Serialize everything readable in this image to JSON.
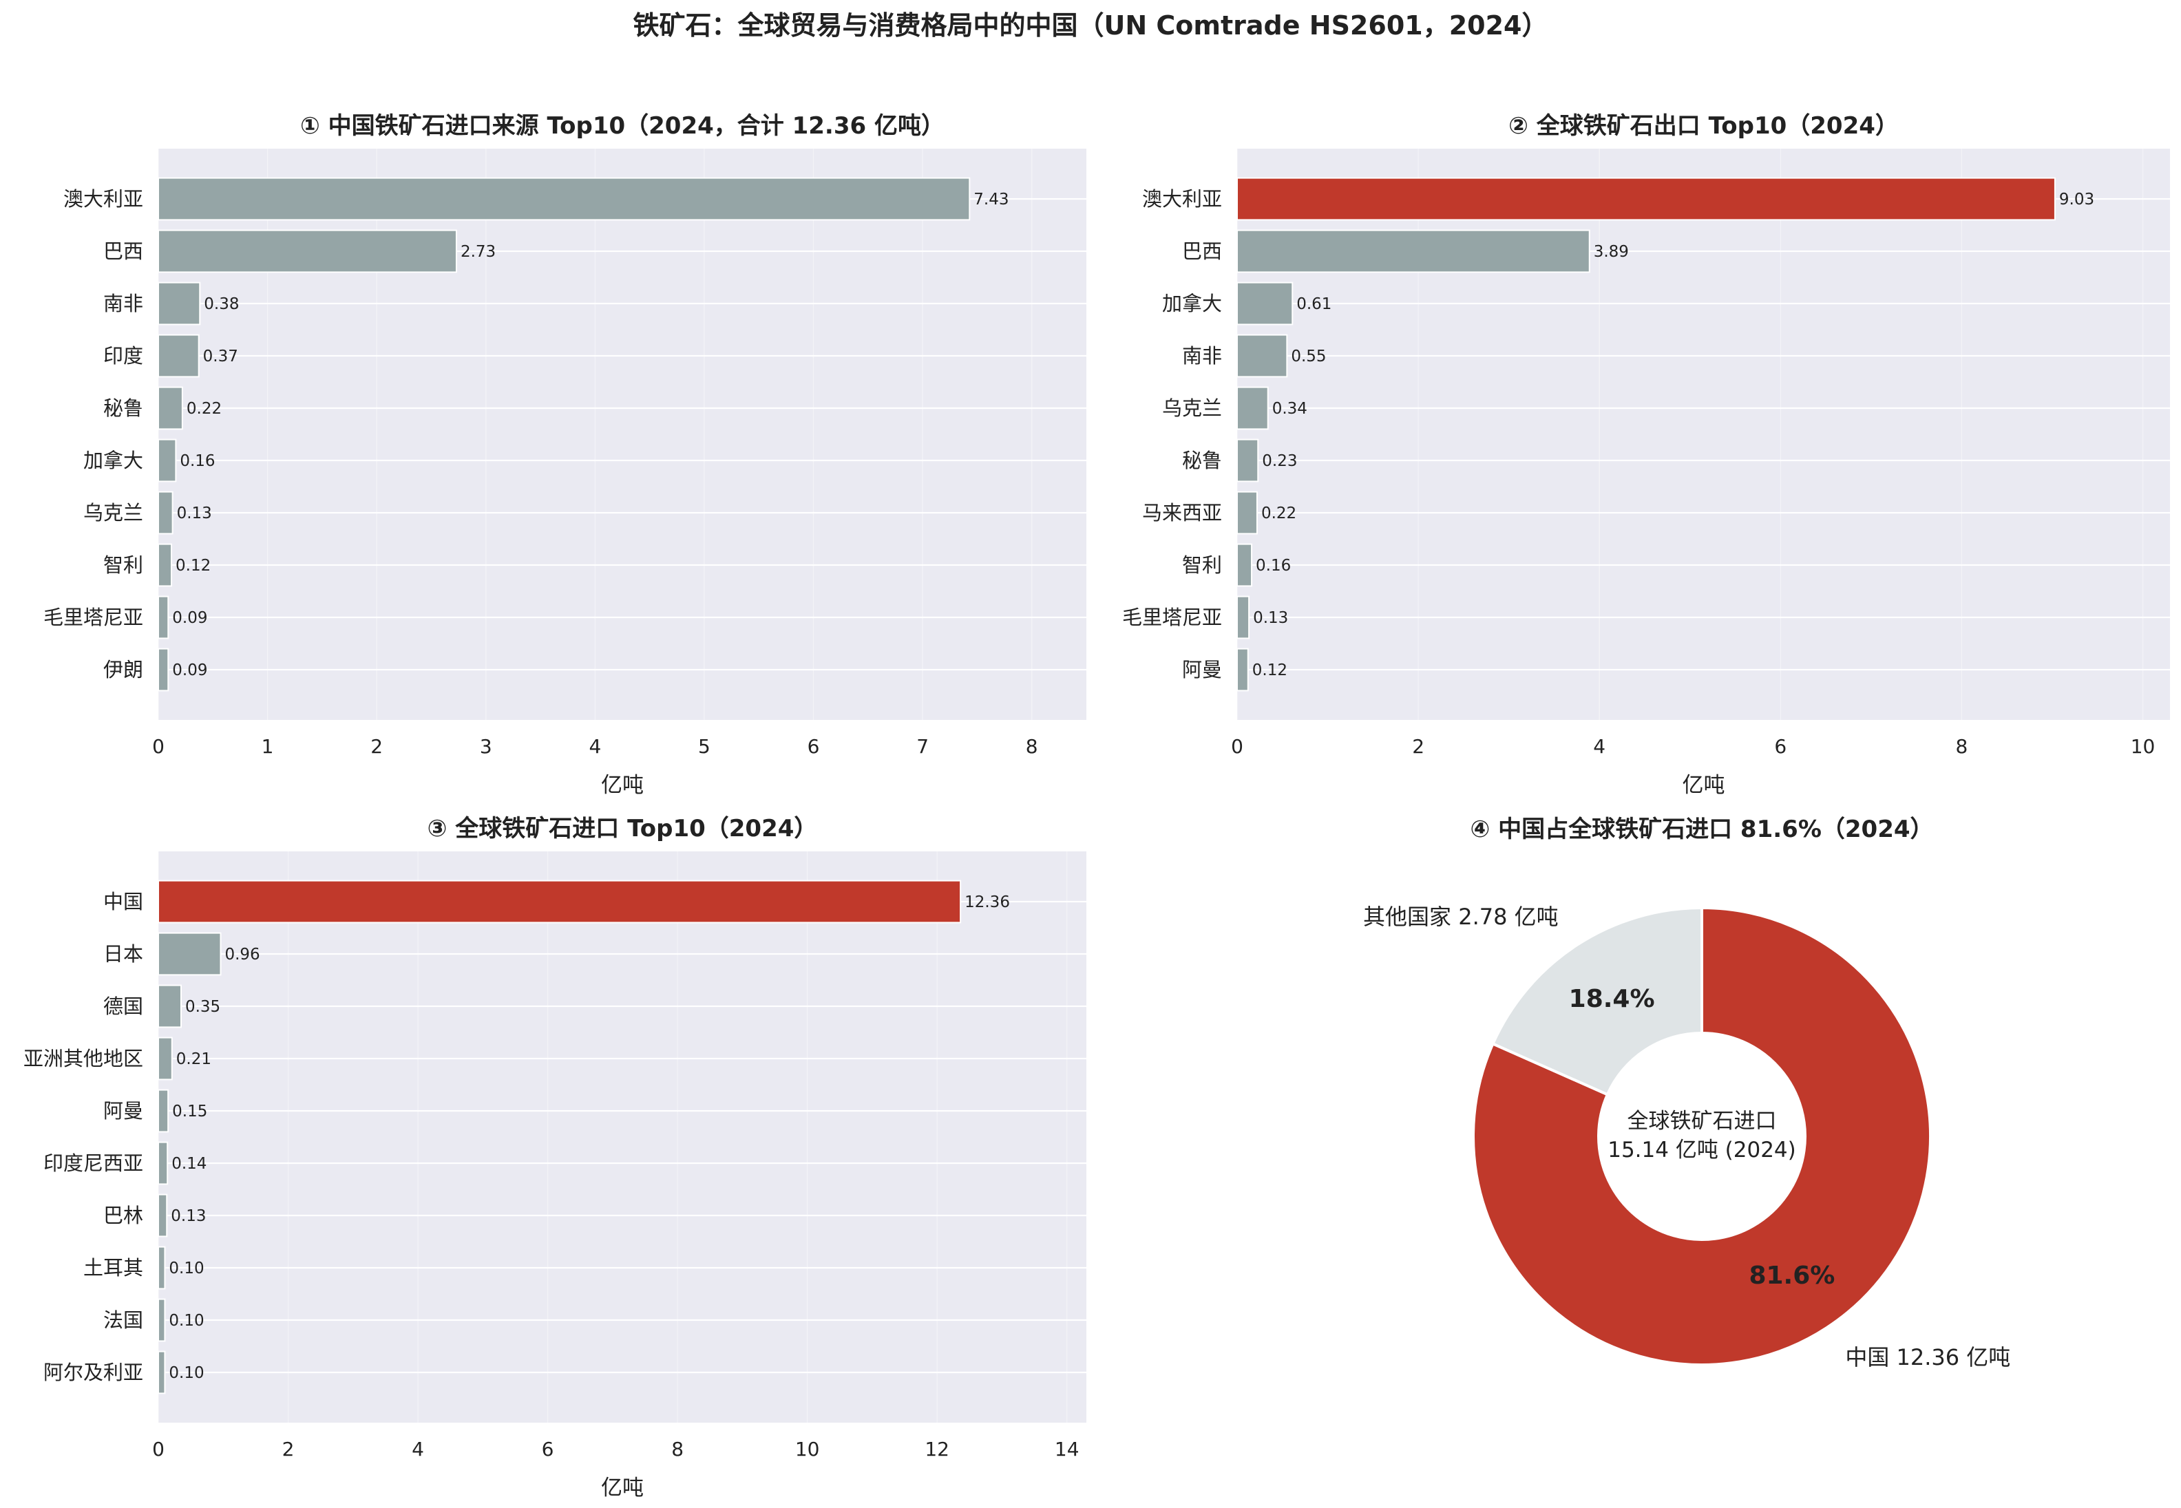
{
  "figure": {
    "title": "铁矿石：全球贸易与消费格局中的中国（UN Comtrade HS2601，2024）"
  },
  "colors": {
    "highlight": "#c0392b",
    "bar": "#95a5a6",
    "panel_bg": "#eaeaf2",
    "grid": "#ffffff",
    "pie_other": "#dfe4e6"
  },
  "chart_data": [
    {
      "type": "bar",
      "orientation": "horizontal",
      "title": "① 中国铁矿石进口来源 Top10（2024，合计 12.36 亿吨）",
      "xlabel": "亿吨",
      "xlim": [
        0,
        8.5
      ],
      "xticks": [
        "0",
        "1",
        "2",
        "3",
        "4",
        "5",
        "6",
        "7",
        "8"
      ],
      "categories": [
        "澳大利亚",
        "巴西",
        "南非",
        "印度",
        "秘鲁",
        "加拿大",
        "乌克兰",
        "智利",
        "毛里塔尼亚",
        "伊朗"
      ],
      "values": [
        7.43,
        2.73,
        0.38,
        0.37,
        0.22,
        0.16,
        0.13,
        0.12,
        0.09,
        0.09
      ],
      "value_labels": [
        "7.43",
        "2.73",
        "0.38",
        "0.37",
        "0.22",
        "0.16",
        "0.13",
        "0.12",
        "0.09",
        "0.09"
      ],
      "highlight": []
    },
    {
      "type": "bar",
      "orientation": "horizontal",
      "title": "② 全球铁矿石出口 Top10（2024）",
      "xlabel": "亿吨",
      "xlim": [
        0,
        10.3
      ],
      "xticks": [
        "0",
        "2",
        "4",
        "6",
        "8",
        "10"
      ],
      "categories": [
        "澳大利亚",
        "巴西",
        "加拿大",
        "南非",
        "乌克兰",
        "秘鲁",
        "马来西亚",
        "智利",
        "毛里塔尼亚",
        "阿曼"
      ],
      "values": [
        9.03,
        3.89,
        0.61,
        0.55,
        0.34,
        0.23,
        0.22,
        0.16,
        0.13,
        0.12
      ],
      "value_labels": [
        "9.03",
        "3.89",
        "0.61",
        "0.55",
        "0.34",
        "0.23",
        "0.22",
        "0.16",
        "0.13",
        "0.12"
      ],
      "highlight": [
        "澳大利亚"
      ]
    },
    {
      "type": "bar",
      "orientation": "horizontal",
      "title": "③ 全球铁矿石进口 Top10（2024）",
      "xlabel": "亿吨",
      "xlim": [
        0,
        14.3
      ],
      "xticks": [
        "0",
        "2",
        "4",
        "6",
        "8",
        "10",
        "12",
        "14"
      ],
      "categories": [
        "中国",
        "日本",
        "德国",
        "亚洲其他地区",
        "阿曼",
        "印度尼西亚",
        "巴林",
        "土耳其",
        "法国",
        "阿尔及利亚"
      ],
      "values": [
        12.36,
        0.96,
        0.35,
        0.21,
        0.15,
        0.14,
        0.13,
        0.1,
        0.1,
        0.1
      ],
      "value_labels": [
        "12.36",
        "0.96",
        "0.35",
        "0.21",
        "0.15",
        "0.14",
        "0.13",
        "0.10",
        "0.10",
        "0.10"
      ],
      "highlight": [
        "中国"
      ]
    },
    {
      "type": "pie",
      "donut": true,
      "title": "④ 中国占全球铁矿石进口 81.6%（2024）",
      "slices": [
        {
          "label": "中国 12.36 亿吨",
          "value": 12.36,
          "pct_label": "81.6%",
          "color": "#c0392b"
        },
        {
          "label": "其他国家 2.78 亿吨",
          "value": 2.78,
          "pct_label": "18.4%",
          "color": "#dfe4e6"
        }
      ],
      "center_text": [
        "全球铁矿石进口",
        "15.14 亿吨 (2024)"
      ]
    }
  ]
}
